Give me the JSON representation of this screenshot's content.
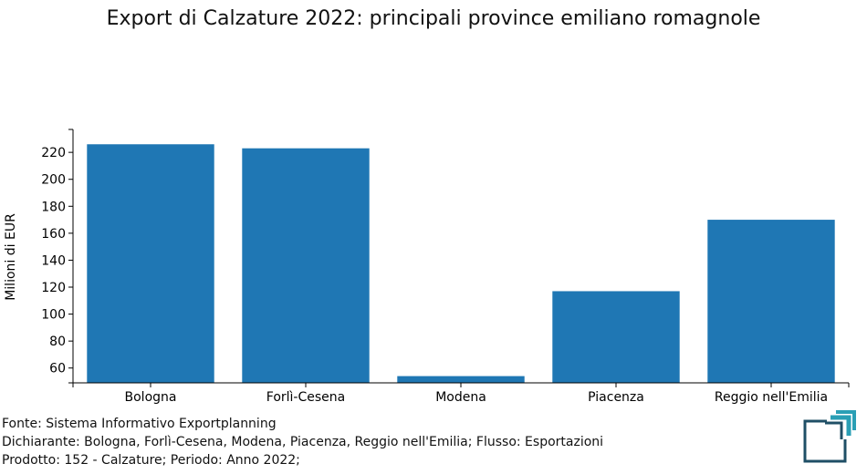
{
  "chart_data": {
    "type": "bar",
    "title": "Export di Calzature 2022: principali province emiliano romagnole",
    "ylabel": "Milioni di EUR",
    "xlabel": "",
    "categories": [
      "Bologna",
      "Forlì-Cesena",
      "Modena",
      "Piacenza",
      "Reggio nell'Emilia"
    ],
    "values": [
      226,
      223,
      54,
      117,
      170
    ],
    "ylim": [
      49,
      237
    ],
    "yticks": [
      60,
      80,
      100,
      120,
      140,
      160,
      180,
      200,
      220
    ],
    "color": "#1f77b4",
    "grid": false
  },
  "footer": {
    "source": "Fonte: Sistema Informativo Exportplanning",
    "declarant": "Dichiarante: Bologna, Forlì-Cesena, Modena, Piacenza, Reggio nell'Emilia; Flusso: Esportazioni",
    "product": "Prodotto: 152 - Calzature; Periodo: Anno 2022;"
  },
  "logo": {
    "icon": "exportplanning-logo-icon",
    "color_dark": "#1f4f66",
    "color_accent": "#2a9fb5"
  }
}
